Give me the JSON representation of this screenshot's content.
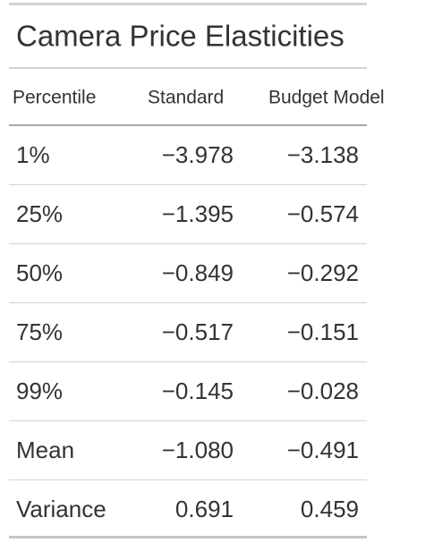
{
  "title": "Camera Price Elasticities",
  "table": {
    "columns": [
      "Percentile",
      "Standard",
      "Budget Model"
    ],
    "rows": [
      [
        "1%",
        "−3.978",
        "−3.138"
      ],
      [
        "25%",
        "−1.395",
        "−0.574"
      ],
      [
        "50%",
        "−0.849",
        "−0.292"
      ],
      [
        "75%",
        "−0.517",
        "−0.151"
      ],
      [
        "99%",
        "−0.145",
        "−0.028"
      ],
      [
        "Mean",
        "−1.080",
        "−0.491"
      ],
      [
        "Variance",
        "0.691",
        "0.459"
      ]
    ]
  }
}
